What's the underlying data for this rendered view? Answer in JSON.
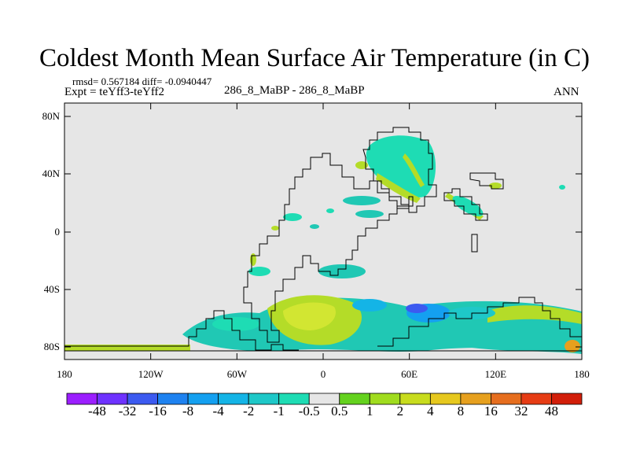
{
  "map": {
    "title": "Coldest Month Mean Surface Air Temperature (in C)",
    "stats_text": "rmsd= 0.567184 diff= -0.0940447",
    "experiment_text": "Expt = teYff3-teYff2",
    "period_text": "286_8_MaBP - 286_8_MaBP",
    "season_text": "ANN",
    "lat_ticks": [
      "80N",
      "40N",
      "0",
      "40S",
      "80S"
    ],
    "lon_ticks": [
      "180",
      "120W",
      "60W",
      "0",
      "60E",
      "120E",
      "180"
    ],
    "colors": {
      "missing": "#e6e6e6",
      "coast": "#000000",
      "contour_fill_cool": "#20c8b4",
      "contour_fill_warm": "#b4dc28"
    }
  },
  "colorbar": {
    "labels": [
      "-48",
      "-32",
      "-16",
      "-8",
      "-4",
      "-2",
      "-1",
      "-0.5",
      "0.5",
      "1",
      "2",
      "4",
      "8",
      "16",
      "32",
      "48"
    ],
    "colors": [
      "#9b1eff",
      "#6e32ff",
      "#3c5af0",
      "#1e82f0",
      "#14a0f0",
      "#14b4e6",
      "#1ec8c8",
      "#1edcb4",
      "#e6e6e6",
      "#64d21e",
      "#a0dc1e",
      "#c8dc1e",
      "#e6c81e",
      "#e6a01e",
      "#e66e1e",
      "#e63c14",
      "#d21e0a"
    ]
  }
}
